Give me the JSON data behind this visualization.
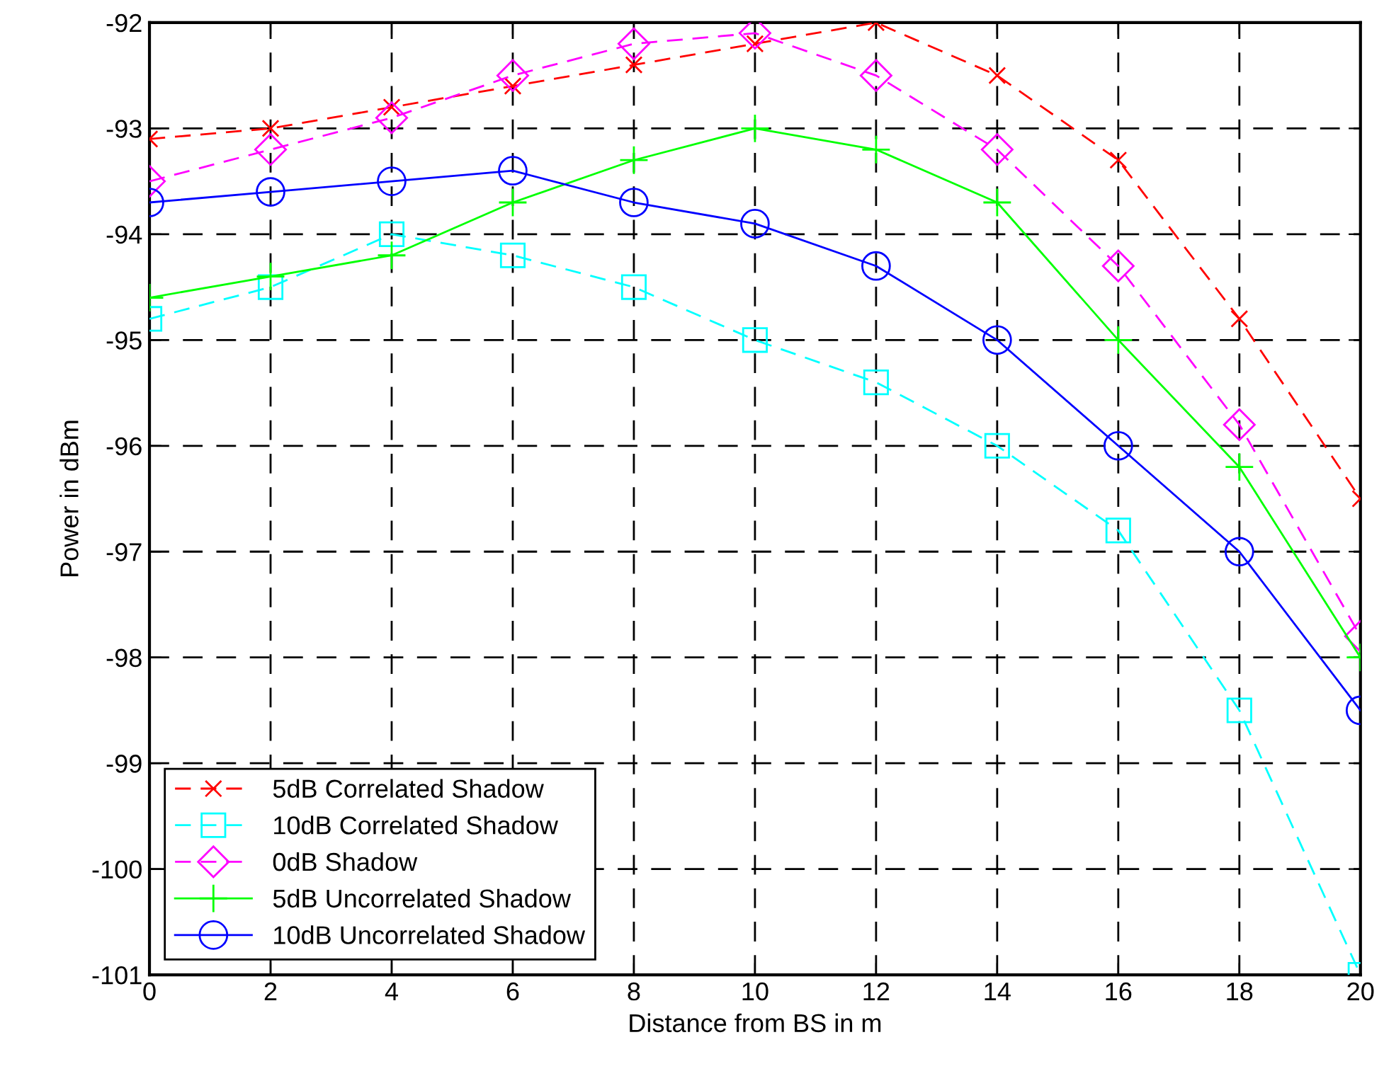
{
  "chart_data": {
    "type": "line",
    "xlabel": "Distance from BS in m",
    "ylabel": "Power in dBm",
    "x": [
      0,
      2,
      4,
      6,
      8,
      10,
      12,
      14,
      16,
      18,
      20
    ],
    "xlim": [
      0,
      20
    ],
    "xticks": [
      0,
      2,
      4,
      6,
      8,
      10,
      12,
      14,
      16,
      18,
      20
    ],
    "ylim": [
      -101,
      -92
    ],
    "yticks": [
      -101,
      -100,
      -99,
      -98,
      -97,
      -96,
      -95,
      -94,
      -93,
      -92
    ],
    "grid": true,
    "legend": "bottom left",
    "series": [
      {
        "name": "5dB Correlated Shadow",
        "color": "#ff0000",
        "marker": "cross",
        "line_style": "dashed",
        "values": [
          -93.1,
          -93.0,
          -92.8,
          -92.6,
          -92.4,
          -92.2,
          -92.0,
          -92.5,
          -93.3,
          -94.8,
          -96.5
        ]
      },
      {
        "name": "10dB Correlated Shadow",
        "color": "#00ffff",
        "marker": "square",
        "line_style": "dashed",
        "values": [
          -94.8,
          -94.5,
          -94.0,
          -94.2,
          -94.5,
          -95.0,
          -95.4,
          -96.0,
          -96.8,
          -98.5,
          -101.0
        ]
      },
      {
        "name": "0dB Shadow",
        "color": "#ff00ff",
        "marker": "diamond",
        "line_style": "dashed",
        "values": [
          -93.5,
          -93.2,
          -92.9,
          -92.5,
          -92.2,
          -92.1,
          -92.5,
          -93.2,
          -94.3,
          -95.8,
          -97.8
        ]
      },
      {
        "name": "5dB Uncorrelated Shadow",
        "color": "#00ff00",
        "marker": "plus",
        "line_style": "solid",
        "values": [
          -94.6,
          -94.4,
          -94.2,
          -93.7,
          -93.3,
          -93.0,
          -93.2,
          -93.7,
          -95.0,
          -96.2,
          -98.0
        ]
      },
      {
        "name": "10dB Uncorrelated Shadow",
        "color": "#0000ff",
        "marker": "circle",
        "line_style": "solid",
        "values": [
          -93.7,
          -93.6,
          -93.5,
          -93.4,
          -93.7,
          -93.9,
          -94.3,
          -95.0,
          -96.0,
          -97.0,
          -98.5
        ]
      }
    ]
  }
}
